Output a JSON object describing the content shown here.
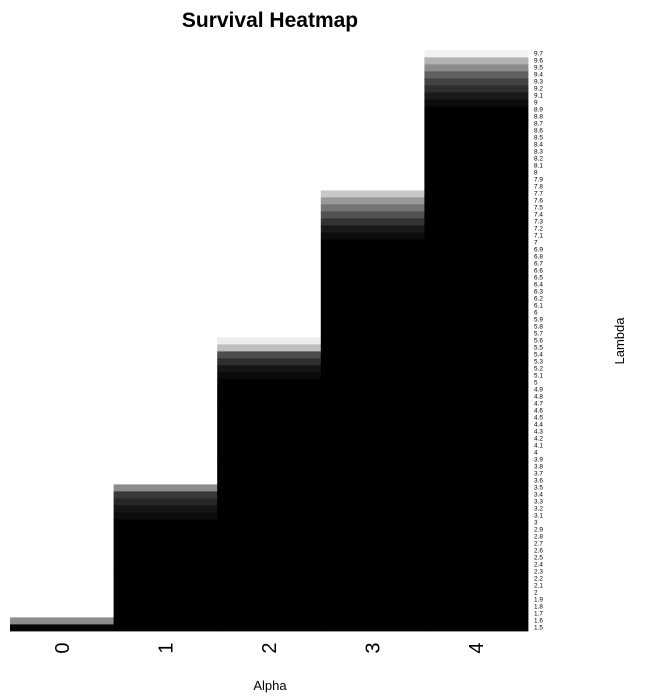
{
  "chart_data": {
    "type": "heatmap",
    "title": "Survival Heatmap",
    "xlabel": "Alpha",
    "ylabel": "Lambda",
    "x_categories": [
      "0",
      "1",
      "2",
      "3",
      "4"
    ],
    "y_categories": [
      "1.5",
      "1.6",
      "1.7",
      "1.8",
      "1.9",
      "2",
      "2.1",
      "2.2",
      "2.3",
      "2.4",
      "2.5",
      "2.6",
      "2.7",
      "2.8",
      "2.9",
      "3",
      "3.1",
      "3.2",
      "3.3",
      "3.4",
      "3.5",
      "3.6",
      "3.7",
      "3.8",
      "3.9",
      "4",
      "4.1",
      "4.2",
      "4.3",
      "4.4",
      "4.5",
      "4.6",
      "4.7",
      "4.8",
      "4.9",
      "5",
      "5.1",
      "5.2",
      "5.3",
      "5.4",
      "5.5",
      "5.6",
      "5.7",
      "5.8",
      "5.9",
      "6",
      "6.1",
      "6.2",
      "6.3",
      "6.4",
      "6.5",
      "6.6",
      "6.7",
      "6.8",
      "6.9",
      "7",
      "7.1",
      "7.2",
      "7.3",
      "7.4",
      "7.5",
      "7.6",
      "7.7",
      "7.8",
      "7.9",
      "8",
      "8.1",
      "8.2",
      "8.3",
      "8.4",
      "8.5",
      "8.6",
      "8.7",
      "8.8",
      "8.9",
      "9",
      "9.1",
      "9.2",
      "9.3",
      "9.4",
      "9.5",
      "9.6",
      "9.7"
    ],
    "colormap": "grayscale: 0 = black, 1 = white",
    "columns": [
      {
        "alpha": "0",
        "values": {
          "1.5": 0.02,
          "1.6": 0.55
        }
      },
      {
        "alpha": "1",
        "values": {
          "1.5": 0.0,
          "3.1": 0.05,
          "3.2": 0.08,
          "3.3": 0.15,
          "3.4": 0.22,
          "3.5": 0.55
        }
      },
      {
        "alpha": "2",
        "values": {
          "1.5": 0.0,
          "5.1": 0.04,
          "5.2": 0.08,
          "5.3": 0.18,
          "5.4": 0.3,
          "5.5": 0.75,
          "5.6": 0.93
        }
      },
      {
        "alpha": "3",
        "values": {
          "1.5": 0.0,
          "7.1": 0.05,
          "7.2": 0.1,
          "7.3": 0.2,
          "7.4": 0.32,
          "7.5": 0.45,
          "7.6": 0.6,
          "7.7": 0.78
        }
      },
      {
        "alpha": "4",
        "values": {
          "1.5": 0.0,
          "9.0": 0.05,
          "9.1": 0.1,
          "9.2": 0.18,
          "9.3": 0.26,
          "9.4": 0.38,
          "9.5": 0.55,
          "9.6": 0.7,
          "9.7": 0.95
        }
      }
    ],
    "empty_color": "#ffffff",
    "grid": false,
    "legend": "none"
  }
}
